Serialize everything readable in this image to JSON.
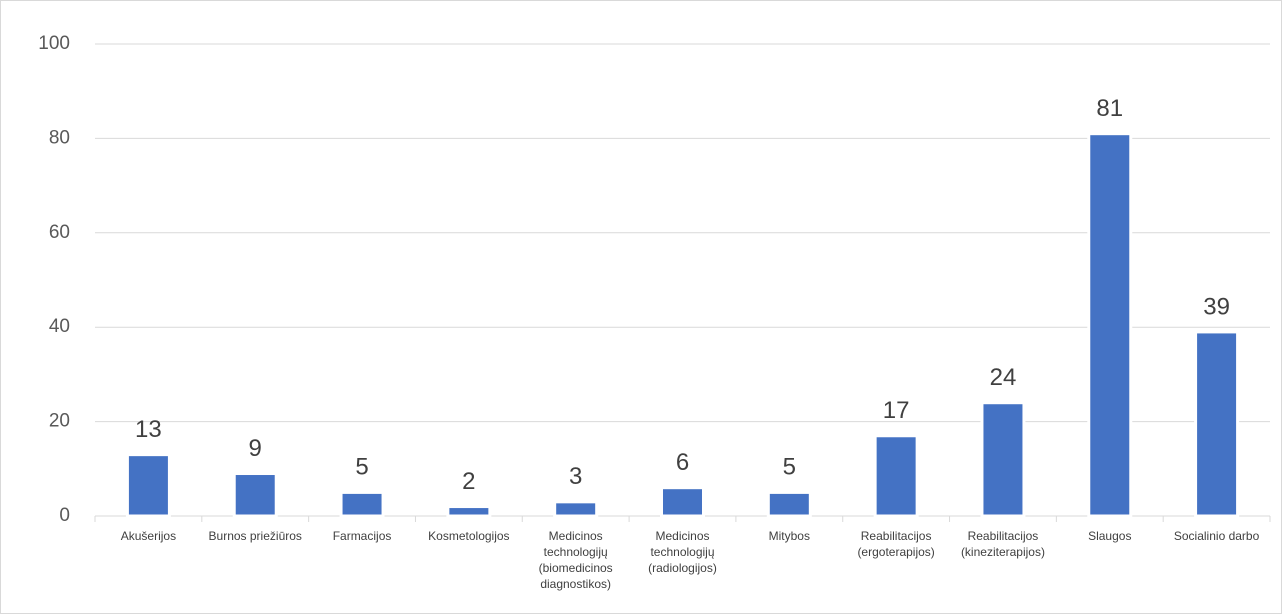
{
  "chart_data": {
    "type": "bar",
    "categories": [
      "Akušerijos",
      "Burnos priežiūros",
      "Farmacijos",
      "Kosmetologijos",
      "Medicinos technologijų (biomedicinos diagnostikos)",
      "Medicinos technologijų (radiologijos)",
      "Mitybos",
      "Reabilitacijos (ergoterapijos)",
      "Reabilitacijos (kineziterapijos)",
      "Slaugos",
      "Socialinio darbo"
    ],
    "values": [
      13,
      9,
      5,
      2,
      3,
      6,
      5,
      17,
      24,
      81,
      39
    ],
    "color": "#4472c4",
    "ylim": [
      0,
      100
    ],
    "yticks": [
      0,
      20,
      40,
      60,
      80,
      100
    ],
    "grid": true
  }
}
